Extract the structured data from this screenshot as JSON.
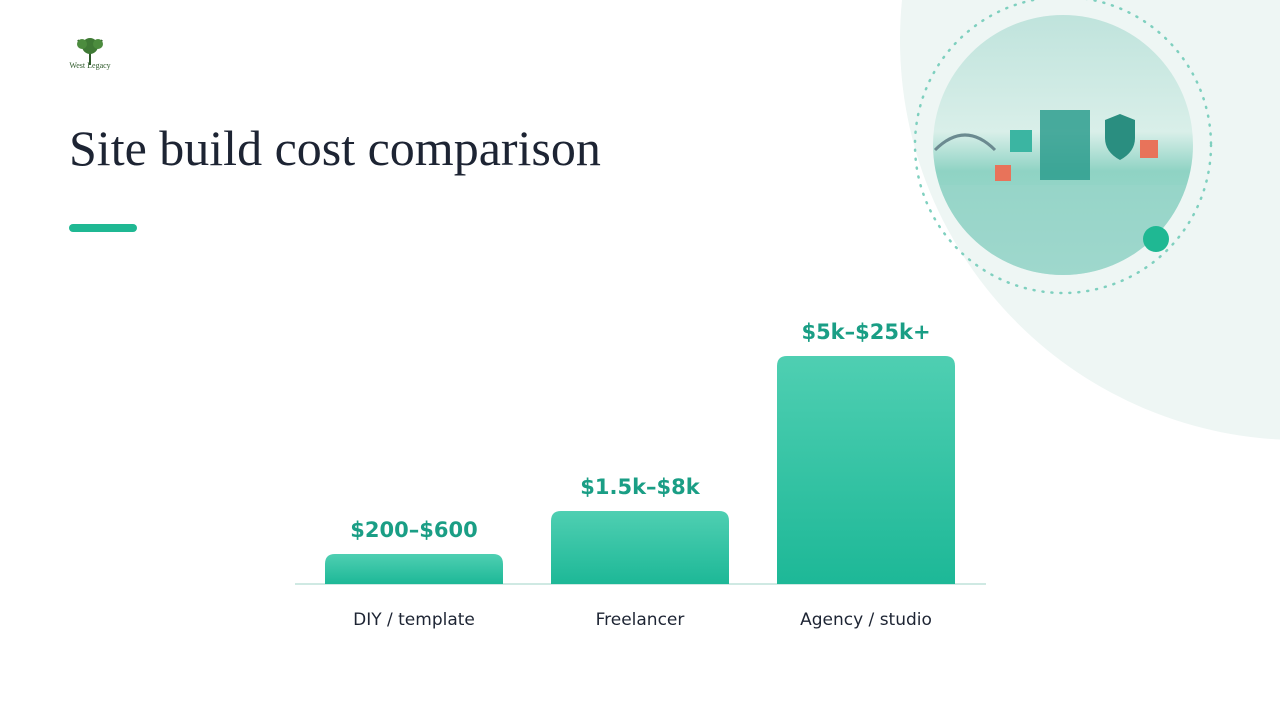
{
  "brand": "West Legacy",
  "chart_data": {
    "type": "bar",
    "title": "Site build cost comparison",
    "categories": [
      "DIY / template",
      "Freelancer",
      "Agency / studio"
    ],
    "values": [
      600,
      8000,
      25000
    ],
    "value_labels": [
      "$200–$600",
      "$1.5k–$8k",
      "$5k–$25k+"
    ],
    "color": "#2bbf9e"
  }
}
